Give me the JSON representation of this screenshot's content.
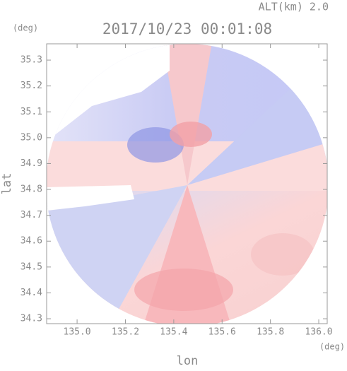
{
  "chart_data": {
    "type": "radar-field",
    "altitude": "ALT(km) 2.0",
    "title": "2017/10/23 00:01:08",
    "y_unit": "(deg)",
    "x_unit": "(deg)",
    "x_label": "lon",
    "y_label": "lat",
    "xlim": [
      134.874,
      136.035
    ],
    "ylim": [
      34.281,
      35.363
    ],
    "xticks": [
      {
        "value": 135.0,
        "label": "135.0"
      },
      135.2,
      135.4,
      135.6,
      135.8,
      {
        "value": 136.0,
        "label": "136.0"
      }
    ],
    "yticks": [
      35.3,
      35.2,
      35.1,
      {
        "value": 35.0,
        "label": "35.0"
      },
      34.9,
      34.8,
      34.7,
      34.6,
      34.5,
      34.4,
      34.3
    ],
    "grid": false
  }
}
